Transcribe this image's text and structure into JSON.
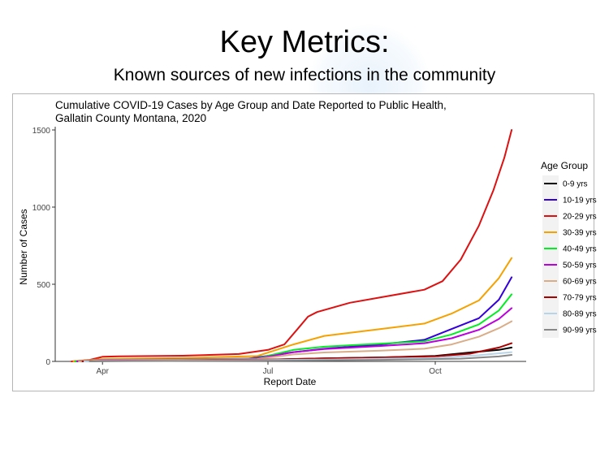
{
  "slide": {
    "title": "Key Metrics:",
    "subtitle": "Known sources of new infections in the community"
  },
  "chart_data": {
    "type": "line",
    "title_lines": [
      "Cumulative COVID-19 Cases by Age Group and Date Reported to Public Health,",
      "Gallatin County Montana, 2020"
    ],
    "xlabel": "Report Date",
    "ylabel": "Number of Cases",
    "x_ticks": [
      {
        "label": "Apr",
        "date": "2020-04-01"
      },
      {
        "label": "Jul",
        "date": "2020-07-01"
      },
      {
        "label": "Oct",
        "date": "2020-10-01"
      }
    ],
    "y_ticks": [
      0,
      500,
      1000,
      1500
    ],
    "xlim": [
      "2020-03-06",
      "2020-11-20"
    ],
    "ylim": [
      0,
      1500
    ],
    "grid": false,
    "legend": {
      "title": "Age Group",
      "position": "right"
    },
    "series": [
      {
        "name": "0-9 yrs",
        "color": "#000000",
        "points": [
          [
            "2020-03-20",
            0
          ],
          [
            "2020-04-01",
            3
          ],
          [
            "2020-05-15",
            6
          ],
          [
            "2020-07-01",
            11
          ],
          [
            "2020-08-01",
            20
          ],
          [
            "2020-09-01",
            26
          ],
          [
            "2020-10-01",
            36
          ],
          [
            "2020-10-20",
            58
          ],
          [
            "2020-11-05",
            75
          ],
          [
            "2020-11-12",
            90
          ]
        ]
      },
      {
        "name": "10-19 yrs",
        "color": "#3300dd",
        "points": [
          [
            "2020-03-18",
            0
          ],
          [
            "2020-04-01",
            6
          ],
          [
            "2020-05-15",
            10
          ],
          [
            "2020-06-20",
            18
          ],
          [
            "2020-07-15",
            60
          ],
          [
            "2020-08-01",
            82
          ],
          [
            "2020-09-01",
            110
          ],
          [
            "2020-09-25",
            140
          ],
          [
            "2020-10-10",
            210
          ],
          [
            "2020-10-25",
            280
          ],
          [
            "2020-11-05",
            400
          ],
          [
            "2020-11-12",
            545
          ]
        ]
      },
      {
        "name": "20-29 yrs",
        "color": "#dd1111",
        "points": [
          [
            "2020-03-15",
            0
          ],
          [
            "2020-03-25",
            10
          ],
          [
            "2020-04-01",
            30
          ],
          [
            "2020-04-10",
            33
          ],
          [
            "2020-05-15",
            37
          ],
          [
            "2020-06-15",
            48
          ],
          [
            "2020-07-01",
            75
          ],
          [
            "2020-07-10",
            110
          ],
          [
            "2020-07-18",
            220
          ],
          [
            "2020-07-23",
            290
          ],
          [
            "2020-07-28",
            320
          ],
          [
            "2020-08-15",
            380
          ],
          [
            "2020-09-01",
            415
          ],
          [
            "2020-09-25",
            465
          ],
          [
            "2020-10-05",
            520
          ],
          [
            "2020-10-15",
            660
          ],
          [
            "2020-10-25",
            880
          ],
          [
            "2020-11-02",
            1110
          ],
          [
            "2020-11-08",
            1320
          ],
          [
            "2020-11-12",
            1500
          ]
        ]
      },
      {
        "name": "30-39 yrs",
        "color": "#f5a100",
        "points": [
          [
            "2020-03-16",
            0
          ],
          [
            "2020-04-01",
            15
          ],
          [
            "2020-05-15",
            22
          ],
          [
            "2020-06-25",
            35
          ],
          [
            "2020-07-15",
            110
          ],
          [
            "2020-08-01",
            165
          ],
          [
            "2020-09-01",
            210
          ],
          [
            "2020-09-25",
            245
          ],
          [
            "2020-10-10",
            310
          ],
          [
            "2020-10-25",
            395
          ],
          [
            "2020-11-05",
            540
          ],
          [
            "2020-11-12",
            670
          ]
        ]
      },
      {
        "name": "40-49 yrs",
        "color": "#00ee22",
        "points": [
          [
            "2020-03-17",
            0
          ],
          [
            "2020-04-01",
            10
          ],
          [
            "2020-05-15",
            14
          ],
          [
            "2020-06-25",
            20
          ],
          [
            "2020-07-15",
            75
          ],
          [
            "2020-08-01",
            95
          ],
          [
            "2020-09-01",
            115
          ],
          [
            "2020-09-25",
            130
          ],
          [
            "2020-10-10",
            175
          ],
          [
            "2020-10-25",
            240
          ],
          [
            "2020-11-05",
            330
          ],
          [
            "2020-11-12",
            435
          ]
        ]
      },
      {
        "name": "50-59 yrs",
        "color": "#bb00dd",
        "points": [
          [
            "2020-03-18",
            0
          ],
          [
            "2020-04-01",
            10
          ],
          [
            "2020-05-15",
            13
          ],
          [
            "2020-06-25",
            18
          ],
          [
            "2020-07-15",
            60
          ],
          [
            "2020-08-01",
            80
          ],
          [
            "2020-09-01",
            100
          ],
          [
            "2020-09-25",
            118
          ],
          [
            "2020-10-10",
            150
          ],
          [
            "2020-10-25",
            205
          ],
          [
            "2020-11-05",
            275
          ],
          [
            "2020-11-12",
            345
          ]
        ]
      },
      {
        "name": "60-69 yrs",
        "color": "#d9ad88",
        "points": [
          [
            "2020-03-19",
            0
          ],
          [
            "2020-04-01",
            8
          ],
          [
            "2020-05-15",
            11
          ],
          [
            "2020-06-25",
            15
          ],
          [
            "2020-07-15",
            45
          ],
          [
            "2020-08-01",
            58
          ],
          [
            "2020-09-01",
            70
          ],
          [
            "2020-09-25",
            82
          ],
          [
            "2020-10-10",
            110
          ],
          [
            "2020-10-25",
            160
          ],
          [
            "2020-11-05",
            215
          ],
          [
            "2020-11-12",
            260
          ]
        ]
      },
      {
        "name": "70-79 yrs",
        "color": "#aa0000",
        "points": [
          [
            "2020-03-21",
            0
          ],
          [
            "2020-04-01",
            5
          ],
          [
            "2020-05-15",
            7
          ],
          [
            "2020-07-01",
            12
          ],
          [
            "2020-08-01",
            20
          ],
          [
            "2020-09-01",
            26
          ],
          [
            "2020-10-01",
            33
          ],
          [
            "2020-10-20",
            50
          ],
          [
            "2020-11-05",
            90
          ],
          [
            "2020-11-12",
            118
          ]
        ]
      },
      {
        "name": "80-89 yrs",
        "color": "#b8d4e8",
        "points": [
          [
            "2020-03-22",
            0
          ],
          [
            "2020-04-01",
            3
          ],
          [
            "2020-06-01",
            6
          ],
          [
            "2020-08-01",
            12
          ],
          [
            "2020-10-01",
            22
          ],
          [
            "2020-10-25",
            40
          ],
          [
            "2020-11-12",
            60
          ]
        ]
      },
      {
        "name": "90-99 yrs",
        "color": "#888888",
        "points": [
          [
            "2020-03-25",
            0
          ],
          [
            "2020-04-15",
            2
          ],
          [
            "2020-07-01",
            5
          ],
          [
            "2020-09-01",
            10
          ],
          [
            "2020-10-15",
            18
          ],
          [
            "2020-11-05",
            32
          ],
          [
            "2020-11-12",
            42
          ]
        ]
      }
    ]
  }
}
